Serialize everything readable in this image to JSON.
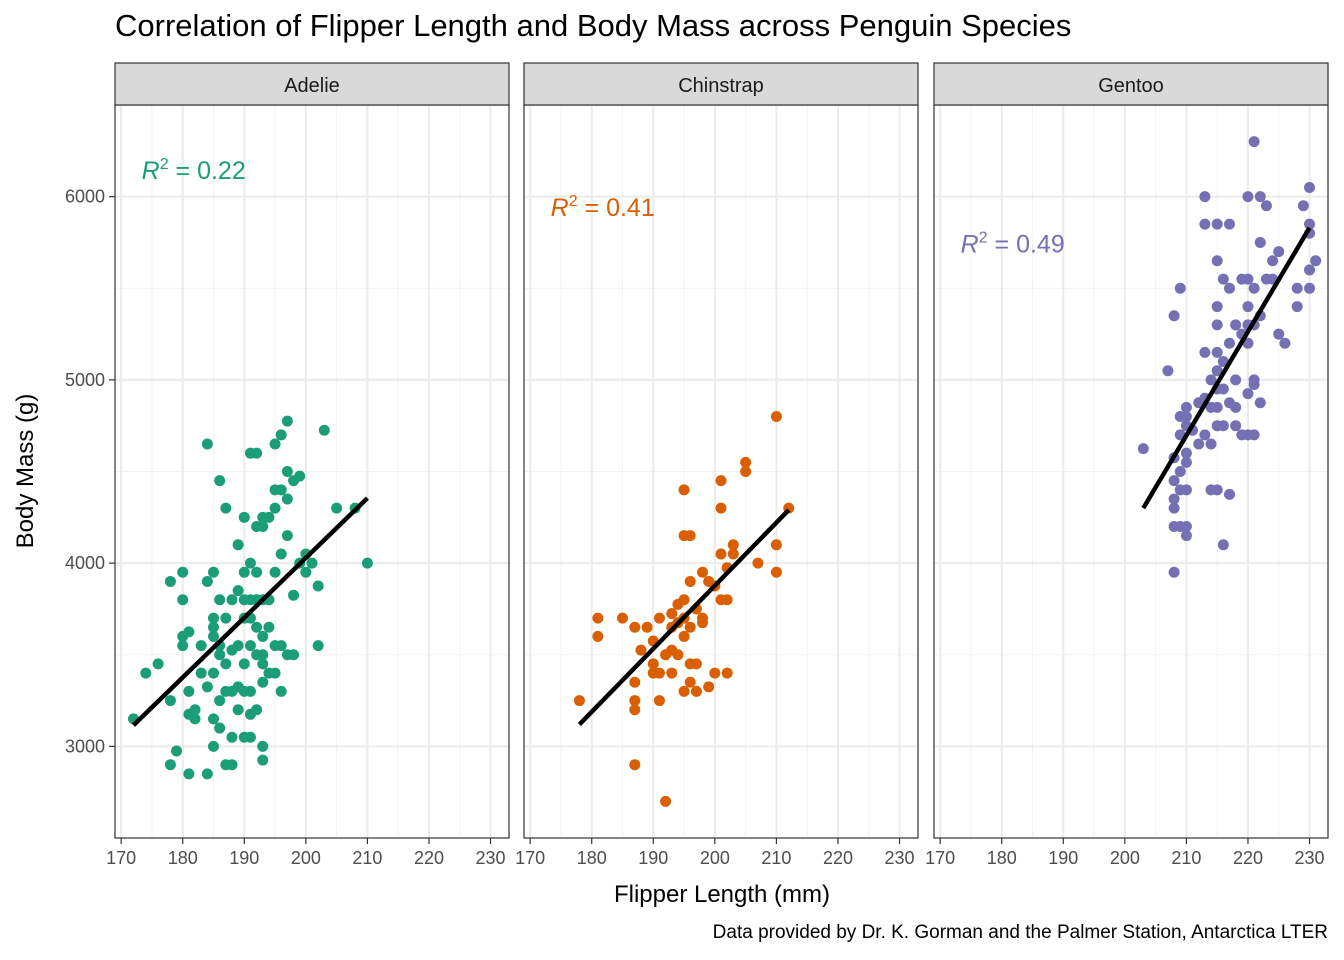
{
  "title": "Correlation of Flipper Length and Body Mass across Penguin Species",
  "caption": "Data provided by Dr. K. Gorman and the Palmer Station, Antarctica LTER",
  "chart_data": {
    "type": "scatter",
    "title": "Correlation of Flipper Length and Body Mass across Penguin Species",
    "xlabel": "Flipper Length (mm)",
    "ylabel": "Body Mass (g)",
    "xlim": [
      169,
      233
    ],
    "ylim": [
      2500,
      6500
    ],
    "x_ticks": [
      170,
      180,
      190,
      200,
      210,
      220,
      230
    ],
    "y_ticks": [
      3000,
      4000,
      5000,
      6000
    ],
    "grid": true,
    "facets": [
      "Adelie",
      "Chinstrap",
      "Gentoo"
    ],
    "series": [
      {
        "name": "Adelie",
        "color": "#1b9e77",
        "r2_label": "0.22",
        "r2_position": [
          173,
          6150
        ],
        "fit_line": [
          [
            172,
            3115
          ],
          [
            210,
            4355
          ]
        ],
        "points": [
          [
            172,
            3150
          ],
          [
            174,
            3400
          ],
          [
            176,
            3450
          ],
          [
            178,
            3900
          ],
          [
            178,
            3250
          ],
          [
            178,
            2900
          ],
          [
            179,
            2975
          ],
          [
            180,
            3950
          ],
          [
            180,
            3800
          ],
          [
            180,
            3600
          ],
          [
            180,
            3550
          ],
          [
            181,
            3625
          ],
          [
            181,
            3300
          ],
          [
            181,
            3175
          ],
          [
            181,
            2850
          ],
          [
            182,
            3200
          ],
          [
            182,
            3150
          ],
          [
            183,
            3550
          ],
          [
            183,
            3400
          ],
          [
            184,
            4650
          ],
          [
            184,
            3900
          ],
          [
            184,
            3325
          ],
          [
            184,
            2850
          ],
          [
            185,
            3950
          ],
          [
            185,
            3700
          ],
          [
            185,
            3650
          ],
          [
            185,
            3600
          ],
          [
            185,
            3400
          ],
          [
            185,
            3150
          ],
          [
            185,
            3000
          ],
          [
            186,
            4450
          ],
          [
            186,
            3800
          ],
          [
            186,
            3550
          ],
          [
            186,
            3500
          ],
          [
            186,
            3250
          ],
          [
            186,
            3100
          ],
          [
            187,
            4300
          ],
          [
            187,
            3700
          ],
          [
            187,
            3450
          ],
          [
            187,
            3300
          ],
          [
            187,
            2900
          ],
          [
            188,
            3800
          ],
          [
            188,
            3525
          ],
          [
            188,
            3300
          ],
          [
            188,
            3050
          ],
          [
            188,
            2900
          ],
          [
            189,
            4100
          ],
          [
            189,
            3850
          ],
          [
            189,
            3550
          ],
          [
            189,
            3325
          ],
          [
            189,
            3200
          ],
          [
            190,
            4250
          ],
          [
            190,
            3950
          ],
          [
            190,
            3800
          ],
          [
            190,
            3700
          ],
          [
            190,
            3450
          ],
          [
            190,
            3300
          ],
          [
            190,
            3050
          ],
          [
            191,
            4600
          ],
          [
            191,
            4000
          ],
          [
            191,
            3800
          ],
          [
            191,
            3700
          ],
          [
            191,
            3550
          ],
          [
            191,
            3300
          ],
          [
            191,
            3175
          ],
          [
            191,
            3050
          ],
          [
            192,
            4600
          ],
          [
            192,
            4200
          ],
          [
            192,
            3950
          ],
          [
            192,
            3800
          ],
          [
            192,
            3650
          ],
          [
            192,
            3500
          ],
          [
            192,
            3200
          ],
          [
            193,
            4250
          ],
          [
            193,
            4200
          ],
          [
            193,
            3800
          ],
          [
            193,
            3600
          ],
          [
            193,
            3500
          ],
          [
            193,
            3450
          ],
          [
            193,
            3350
          ],
          [
            193,
            3000
          ],
          [
            193,
            2925
          ],
          [
            194,
            4250
          ],
          [
            194,
            3800
          ],
          [
            194,
            3650
          ],
          [
            194,
            3400
          ],
          [
            195,
            4650
          ],
          [
            195,
            4400
          ],
          [
            195,
            4300
          ],
          [
            195,
            3950
          ],
          [
            195,
            3550
          ],
          [
            195,
            3400
          ],
          [
            196,
            4700
          ],
          [
            196,
            4400
          ],
          [
            196,
            4050
          ],
          [
            196,
            3550
          ],
          [
            196,
            3300
          ],
          [
            197,
            4775
          ],
          [
            197,
            4500
          ],
          [
            197,
            4350
          ],
          [
            197,
            4150
          ],
          [
            197,
            3500
          ],
          [
            198,
            4450
          ],
          [
            198,
            3825
          ],
          [
            198,
            3500
          ],
          [
            199,
            4475
          ],
          [
            199,
            4000
          ],
          [
            200,
            4050
          ],
          [
            200,
            3950
          ],
          [
            201,
            4000
          ],
          [
            202,
            3875
          ],
          [
            202,
            3550
          ],
          [
            203,
            4725
          ],
          [
            205,
            4300
          ],
          [
            208,
            4300
          ],
          [
            210,
            4000
          ]
        ]
      },
      {
        "name": "Chinstrap",
        "color": "#d95f02",
        "r2_label": "0.41",
        "r2_position": [
          173,
          5950
        ],
        "fit_line": [
          [
            178,
            3120
          ],
          [
            212,
            4290
          ]
        ],
        "points": [
          [
            178,
            3250
          ],
          [
            181,
            3700
          ],
          [
            181,
            3600
          ],
          [
            185,
            3700
          ],
          [
            187,
            3650
          ],
          [
            187,
            3350
          ],
          [
            187,
            3250
          ],
          [
            187,
            3200
          ],
          [
            187,
            2900
          ],
          [
            188,
            3525
          ],
          [
            189,
            3650
          ],
          [
            190,
            3575
          ],
          [
            190,
            3450
          ],
          [
            190,
            3400
          ],
          [
            191,
            3400
          ],
          [
            191,
            3250
          ],
          [
            191,
            3700
          ],
          [
            192,
            3500
          ],
          [
            192,
            2700
          ],
          [
            193,
            3725
          ],
          [
            193,
            3650
          ],
          [
            193,
            3525
          ],
          [
            193,
            3400
          ],
          [
            194,
            3775
          ],
          [
            194,
            3675
          ],
          [
            194,
            3500
          ],
          [
            195,
            4400
          ],
          [
            195,
            4150
          ],
          [
            195,
            3800
          ],
          [
            195,
            3700
          ],
          [
            195,
            3600
          ],
          [
            195,
            3300
          ],
          [
            196,
            4150
          ],
          [
            196,
            3900
          ],
          [
            196,
            3650
          ],
          [
            196,
            3450
          ],
          [
            196,
            3350
          ],
          [
            197,
            3750
          ],
          [
            197,
            3450
          ],
          [
            197,
            3300
          ],
          [
            198,
            3950
          ],
          [
            198,
            3700
          ],
          [
            198,
            3675
          ],
          [
            199,
            3900
          ],
          [
            199,
            3325
          ],
          [
            200,
            3875
          ],
          [
            200,
            3400
          ],
          [
            201,
            4450
          ],
          [
            201,
            4300
          ],
          [
            201,
            4050
          ],
          [
            201,
            3800
          ],
          [
            202,
            3975
          ],
          [
            202,
            3800
          ],
          [
            202,
            3400
          ],
          [
            203,
            4100
          ],
          [
            203,
            4050
          ],
          [
            205,
            4550
          ],
          [
            205,
            4500
          ],
          [
            207,
            4000
          ],
          [
            210,
            4800
          ],
          [
            210,
            4100
          ],
          [
            210,
            3950
          ],
          [
            212,
            4300
          ]
        ]
      },
      {
        "name": "Gentoo",
        "color": "#7570b3",
        "r2_label": "0.49",
        "r2_position": [
          173,
          5750
        ],
        "fit_line": [
          [
            203,
            4300
          ],
          [
            230,
            5830
          ]
        ],
        "points": [
          [
            203,
            4625
          ],
          [
            207,
            5050
          ],
          [
            208,
            5350
          ],
          [
            208,
            4575
          ],
          [
            208,
            4450
          ],
          [
            208,
            4350
          ],
          [
            208,
            4300
          ],
          [
            208,
            4200
          ],
          [
            208,
            3950
          ],
          [
            209,
            5500
          ],
          [
            209,
            4800
          ],
          [
            209,
            4700
          ],
          [
            209,
            4500
          ],
          [
            209,
            4400
          ],
          [
            209,
            4200
          ],
          [
            210,
            4850
          ],
          [
            210,
            4800
          ],
          [
            210,
            4750
          ],
          [
            210,
            4600
          ],
          [
            210,
            4550
          ],
          [
            210,
            4400
          ],
          [
            210,
            4200
          ],
          [
            210,
            4150
          ],
          [
            211,
            4725
          ],
          [
            212,
            4875
          ],
          [
            212,
            4650
          ],
          [
            213,
            6000
          ],
          [
            213,
            5850
          ],
          [
            213,
            5150
          ],
          [
            213,
            4900
          ],
          [
            213,
            4700
          ],
          [
            214,
            5000
          ],
          [
            214,
            4850
          ],
          [
            214,
            4650
          ],
          [
            214,
            4400
          ],
          [
            215,
            5850
          ],
          [
            215,
            5650
          ],
          [
            215,
            5400
          ],
          [
            215,
            5300
          ],
          [
            215,
            5150
          ],
          [
            215,
            5050
          ],
          [
            215,
            4950
          ],
          [
            215,
            4850
          ],
          [
            215,
            4750
          ],
          [
            215,
            4400
          ],
          [
            216,
            5550
          ],
          [
            216,
            5100
          ],
          [
            216,
            4950
          ],
          [
            216,
            4750
          ],
          [
            216,
            4100
          ],
          [
            217,
            5850
          ],
          [
            217,
            5500
          ],
          [
            217,
            5200
          ],
          [
            217,
            4875
          ],
          [
            217,
            4375
          ],
          [
            218,
            5300
          ],
          [
            218,
            5000
          ],
          [
            218,
            4850
          ],
          [
            218,
            4750
          ],
          [
            219,
            5250
          ],
          [
            219,
            5550
          ],
          [
            219,
            4700
          ],
          [
            220,
            6000
          ],
          [
            220,
            5550
          ],
          [
            220,
            5400
          ],
          [
            220,
            5300
          ],
          [
            220,
            5200
          ],
          [
            220,
            4925
          ],
          [
            220,
            4700
          ],
          [
            221,
            6300
          ],
          [
            221,
            5500
          ],
          [
            221,
            5300
          ],
          [
            221,
            5000
          ],
          [
            221,
            4975
          ],
          [
            221,
            4700
          ],
          [
            222,
            6000
          ],
          [
            222,
            5750
          ],
          [
            222,
            5350
          ],
          [
            222,
            4875
          ],
          [
            223,
            5950
          ],
          [
            223,
            5550
          ],
          [
            224,
            5650
          ],
          [
            224,
            5550
          ],
          [
            225,
            5700
          ],
          [
            225,
            5250
          ],
          [
            226,
            5200
          ],
          [
            228,
            5500
          ],
          [
            228,
            5400
          ],
          [
            229,
            5950
          ],
          [
            230,
            6050
          ],
          [
            230,
            5850
          ],
          [
            230,
            5800
          ],
          [
            230,
            5600
          ],
          [
            230,
            5500
          ],
          [
            231,
            5650
          ]
        ]
      }
    ]
  }
}
